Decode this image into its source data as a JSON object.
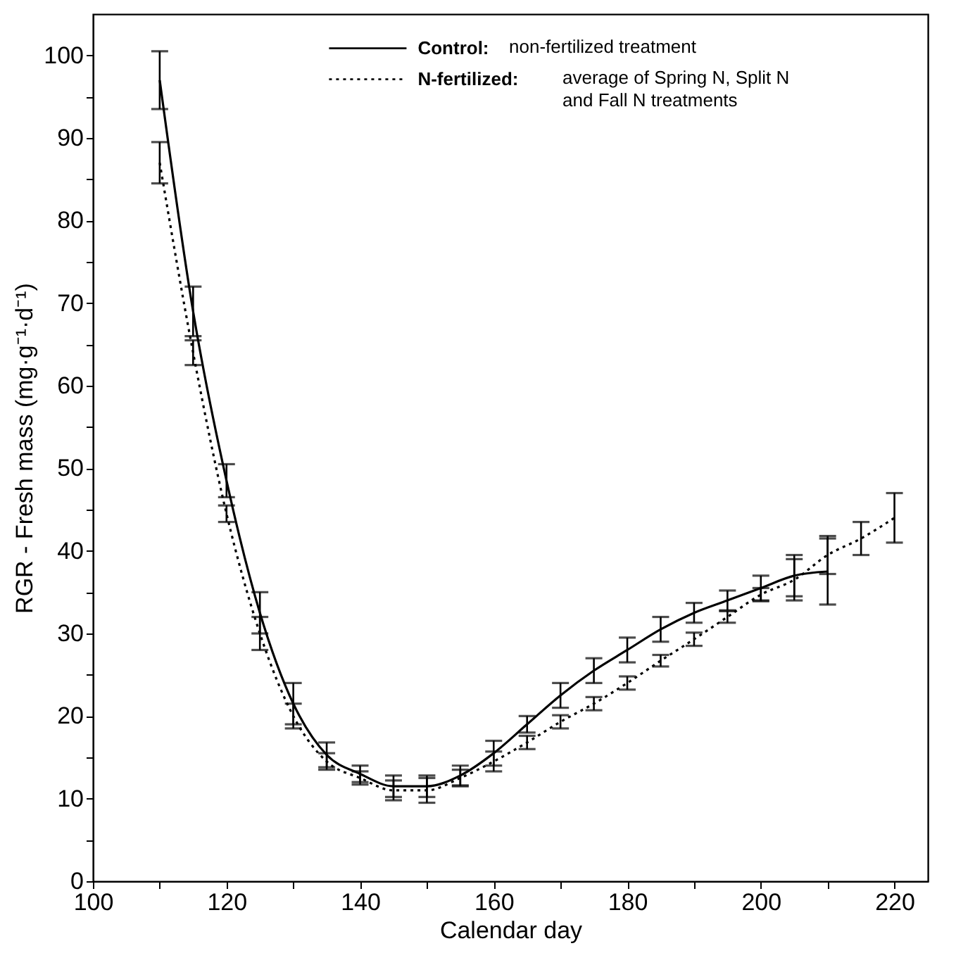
{
  "chart_data": {
    "type": "line",
    "xlabel": "Calendar day",
    "ylabel": "RGR - Fresh mass (mg·g⁻¹·d⁻¹)",
    "xlim": [
      100,
      225
    ],
    "ylim": [
      0,
      105
    ],
    "xticks": [
      100,
      {
        "value": 110,
        "label": null
      },
      120,
      {
        "value": 130,
        "label": null
      },
      140,
      {
        "value": 150,
        "label": null
      },
      160,
      {
        "value": 170,
        "label": null
      },
      180,
      {
        "value": 190,
        "label": null
      },
      200,
      {
        "value": 210,
        "label": null
      },
      220
    ],
    "yticks": [
      0,
      {
        "value": 5,
        "label": null
      },
      10,
      {
        "value": 15,
        "label": null
      },
      20,
      {
        "value": 25,
        "label": null
      },
      30,
      {
        "value": 35,
        "label": null
      },
      40,
      {
        "value": 45,
        "label": null
      },
      50,
      {
        "value": 55,
        "label": null
      },
      60,
      {
        "value": 65,
        "label": null
      },
      70,
      {
        "value": 75,
        "label": null
      },
      80,
      {
        "value": 85,
        "label": null
      },
      90,
      {
        "value": 95,
        "label": null
      },
      100
    ],
    "grid": false,
    "legend": "top",
    "marker": "none",
    "annotations": [
      "non-fertilized treatment",
      "average of Spring N, Split N\nand Fall N treatments"
    ],
    "series": [
      {
        "name": "Control:",
        "color": "#000000",
        "line_style": "solid",
        "x": [
          110,
          115,
          120,
          125,
          130,
          135,
          140,
          145,
          150,
          155,
          160,
          165,
          170,
          175,
          180,
          185,
          190,
          195,
          200,
          205,
          210
        ],
        "values": [
          97,
          69,
          48.5,
          32.5,
          21.5,
          15.3,
          13,
          11.5,
          11.5,
          12.8,
          15.5,
          19,
          22.5,
          25.5,
          28,
          30.5,
          32.5,
          34,
          35.5,
          37,
          37.5
        ],
        "errors": [
          3.5,
          3,
          2,
          2.5,
          2.5,
          1.5,
          1,
          1.3,
          1.3,
          1.2,
          1.5,
          1,
          1.5,
          1.5,
          1.5,
          1.5,
          1.2,
          1.2,
          1.5,
          2.5,
          4
        ]
      },
      {
        "name": "N-fertilized:",
        "color": "#000000",
        "line_style": "dotted",
        "x": [
          110,
          115,
          120,
          125,
          130,
          135,
          140,
          145,
          150,
          155,
          160,
          165,
          170,
          175,
          180,
          185,
          190,
          195,
          200,
          205,
          210,
          215,
          220
        ],
        "values": [
          87,
          64,
          44.5,
          30,
          20,
          14.5,
          12.5,
          11,
          11,
          12.5,
          14.5,
          16.8,
          19.3,
          21.5,
          24,
          26.7,
          29.3,
          32,
          34.7,
          36.5,
          39.5,
          41.5,
          44
        ],
        "errors": [
          2.5,
          1.5,
          1,
          2,
          1.5,
          1,
          0.8,
          1.2,
          1.5,
          1,
          1.2,
          0.8,
          0.8,
          0.8,
          0.8,
          0.7,
          0.8,
          0.7,
          0.8,
          2.5,
          2.3,
          2,
          3
        ]
      }
    ]
  }
}
